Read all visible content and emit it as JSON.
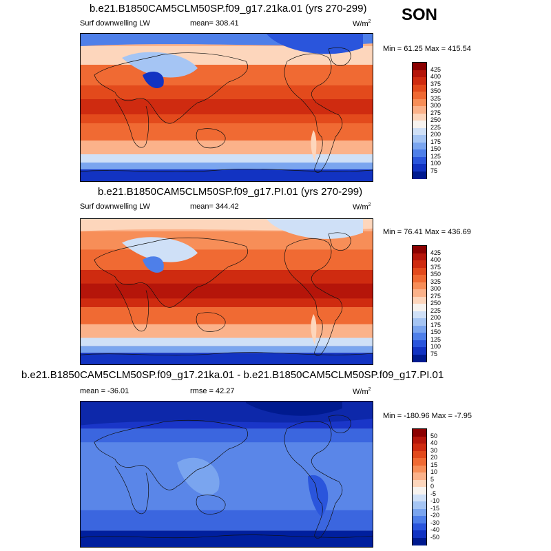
{
  "season": "SON",
  "panels": [
    {
      "title": "b.e21.B1850CAM5CLM50SP.f09_g17.21ka.01 (yrs 270-299)",
      "left_label": "Surf downwelling LW",
      "center_label": "mean= 308.41",
      "units": "W/m",
      "units_sup": "2",
      "minmax": "Min = 61.25 Max = 415.54",
      "colorbar_labels": [
        "425",
        "400",
        "375",
        "350",
        "325",
        "300",
        "275",
        "250",
        "225",
        "200",
        "175",
        "150",
        "125",
        "100",
        "75"
      ],
      "colorbar_colors": [
        "#8b0000",
        "#b5150a",
        "#cf2b10",
        "#e34a1c",
        "#f06a33",
        "#f78e58",
        "#fbb28a",
        "#fdd6bc",
        "#f7f3ef",
        "#cfe0f7",
        "#a5c5f4",
        "#7aa5ef",
        "#4e7fe9",
        "#2a55dc",
        "#1233c2",
        "#001a8f"
      ],
      "map_palette": "downwelling_21ka"
    },
    {
      "title": "b.e21.B1850CAM5CLM50SP.f09_g17.PI.01 (yrs 270-299)",
      "left_label": "Surf downwelling LW",
      "center_label": "mean= 344.42",
      "units": "W/m",
      "units_sup": "2",
      "minmax": "Min = 76.41 Max = 436.69",
      "colorbar_labels": [
        "425",
        "400",
        "375",
        "350",
        "325",
        "300",
        "275",
        "250",
        "225",
        "200",
        "175",
        "150",
        "125",
        "100",
        "75"
      ],
      "colorbar_colors": [
        "#8b0000",
        "#b5150a",
        "#cf2b10",
        "#e34a1c",
        "#f06a33",
        "#f78e58",
        "#fbb28a",
        "#fdd6bc",
        "#f7f3ef",
        "#cfe0f7",
        "#a5c5f4",
        "#7aa5ef",
        "#4e7fe9",
        "#2a55dc",
        "#1233c2",
        "#001a8f"
      ],
      "map_palette": "downwelling_pi"
    },
    {
      "title": "b.e21.B1850CAM5CLM50SP.f09_g17.21ka.01 - b.e21.B1850CAM5CLM50SP.f09_g17.PI.01",
      "left_label": "mean = -36.01",
      "center_label": "rmse = 42.27",
      "units": "W/m",
      "units_sup": "2",
      "minmax": "Min = -180.96 Max = -7.95",
      "colorbar_labels": [
        "50",
        "40",
        "30",
        "20",
        "15",
        "10",
        "5",
        "0",
        "-5",
        "-10",
        "-15",
        "-20",
        "-30",
        "-40",
        "-50"
      ],
      "colorbar_colors": [
        "#8b0000",
        "#b5150a",
        "#cf2b10",
        "#e34a1c",
        "#f06a33",
        "#f78e58",
        "#fbb28a",
        "#fdd6bc",
        "#f7f3ef",
        "#cfe0f7",
        "#a5c5f4",
        "#7aa5ef",
        "#4e7fe9",
        "#2a55dc",
        "#1233c2",
        "#001a8f"
      ],
      "map_palette": "difference"
    }
  ],
  "chart_data": [
    {
      "type": "heatmap",
      "title": "b.e21.B1850CAM5CLM50SP.f09_g17.21ka.01 (yrs 270-299)",
      "variable": "Surf downwelling LW",
      "units": "W/m2",
      "mean": 308.41,
      "min": 61.25,
      "max": 415.54,
      "levels": [
        75,
        100,
        125,
        150,
        175,
        200,
        225,
        250,
        275,
        300,
        325,
        350,
        375,
        400,
        425
      ]
    },
    {
      "type": "heatmap",
      "title": "b.e21.B1850CAM5CLM50SP.f09_g17.PI.01 (yrs 270-299)",
      "variable": "Surf downwelling LW",
      "units": "W/m2",
      "mean": 344.42,
      "min": 76.41,
      "max": 436.69,
      "levels": [
        75,
        100,
        125,
        150,
        175,
        200,
        225,
        250,
        275,
        300,
        325,
        350,
        375,
        400,
        425
      ]
    },
    {
      "type": "heatmap",
      "title": "b.e21.B1850CAM5CLM50SP.f09_g17.21ka.01 - b.e21.B1850CAM5CLM50SP.f09_g17.PI.01",
      "units": "W/m2",
      "mean": -36.01,
      "rmse": 42.27,
      "min": -180.96,
      "max": -7.95,
      "levels": [
        -50,
        -40,
        -30,
        -20,
        -15,
        -10,
        -5,
        0,
        5,
        10,
        15,
        20,
        30,
        40,
        50
      ]
    }
  ]
}
